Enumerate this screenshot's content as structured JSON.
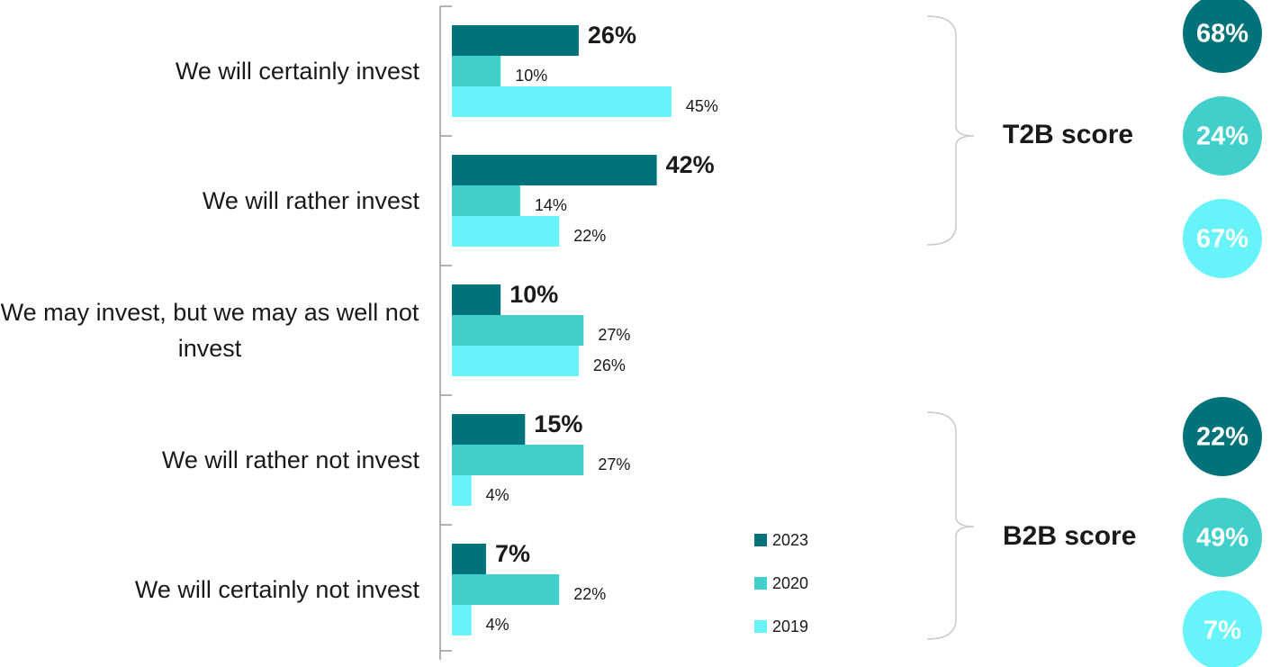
{
  "chart_data": {
    "type": "bar",
    "orientation": "horizontal",
    "categories": [
      "We will certainly invest",
      "We will rather invest",
      "We may invest, but we may as well not invest",
      "We will rather not invest",
      "We will certainly not invest"
    ],
    "series": [
      {
        "name": "2023",
        "color": "#00737a",
        "values": [
          26,
          42,
          10,
          15,
          7
        ],
        "value_labels": [
          "26%",
          "42%",
          "10%",
          "15%",
          "7%"
        ]
      },
      {
        "name": "2020",
        "color": "#40cfcb",
        "values": [
          10,
          14,
          27,
          27,
          22
        ],
        "value_labels": [
          "10%",
          "14%",
          "27%",
          "27%",
          "22%"
        ]
      },
      {
        "name": "2019",
        "color": "#66f3fa",
        "values": [
          45,
          22,
          26,
          4,
          4
        ],
        "value_labels": [
          "45%",
          "22%",
          "26%",
          "4%",
          "4%"
        ]
      }
    ],
    "scores": [
      {
        "label": "T2B score",
        "values": [
          68,
          24,
          67
        ],
        "value_labels": [
          "68%",
          "24%",
          "67%"
        ]
      },
      {
        "label": "B2B score",
        "values": [
          22,
          49,
          7
        ],
        "value_labels": [
          "22%",
          "49%",
          "7%"
        ]
      }
    ]
  }
}
